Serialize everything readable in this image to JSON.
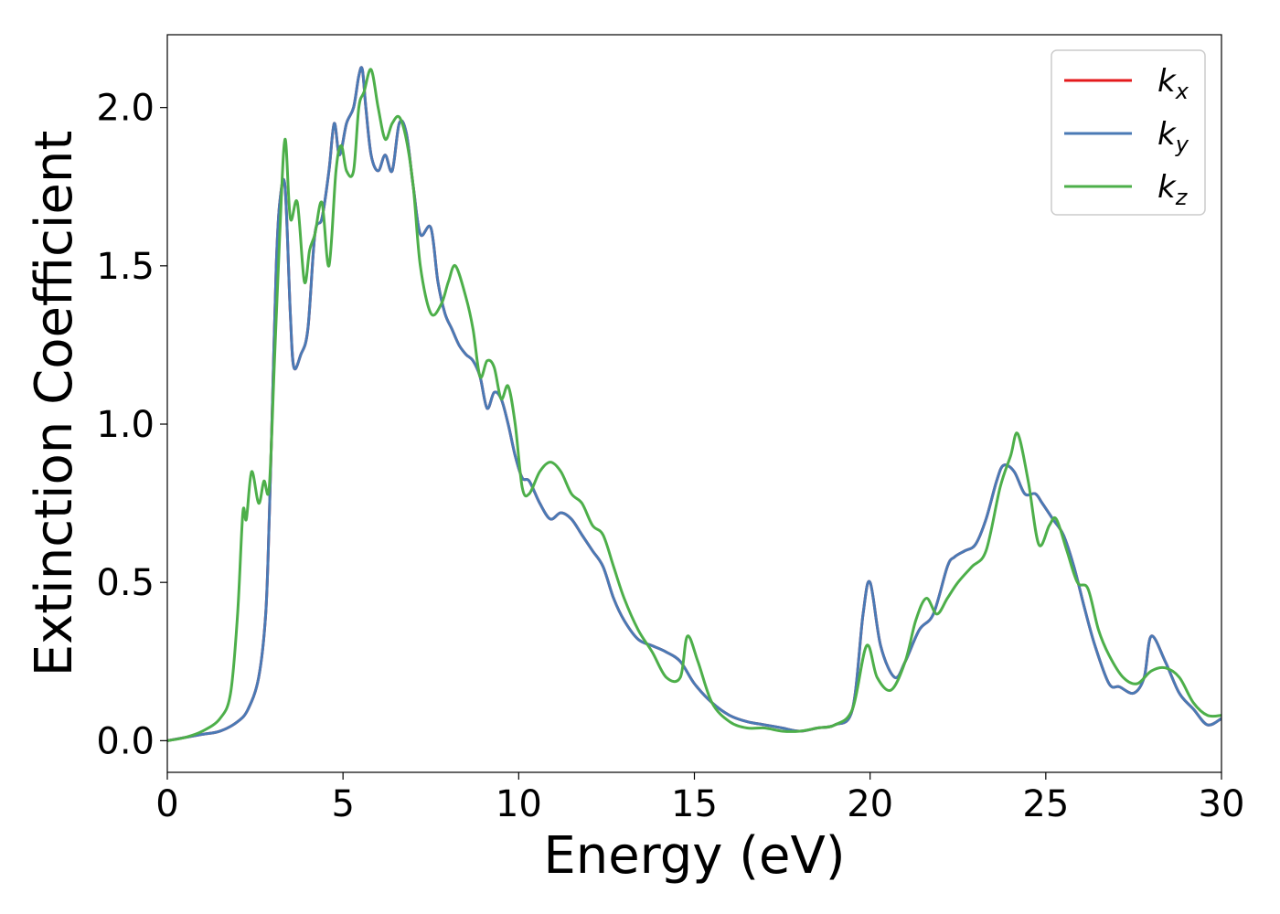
{
  "chart_data": {
    "type": "line",
    "xlabel": "Energy (eV)",
    "ylabel": "Extinction Coefficient",
    "xlim": [
      0,
      30
    ],
    "ylim": [
      -0.1,
      2.23
    ],
    "xticks": [
      "0",
      "5",
      "10",
      "15",
      "20",
      "25",
      "30"
    ],
    "yticks": [
      "0.0",
      "0.5",
      "1.0",
      "1.5",
      "2.0"
    ],
    "legend_position": "top-right",
    "grid": false,
    "series": [
      {
        "name": "k_x",
        "label_main": "k",
        "label_sub": "x",
        "color": "#e41a1c",
        "x": [
          0,
          0.5,
          1,
          1.5,
          2,
          2.3,
          2.6,
          2.8,
          2.9,
          3.0,
          3.1,
          3.2,
          3.35,
          3.5,
          3.6,
          3.8,
          4.0,
          4.2,
          4.4,
          4.6,
          4.75,
          4.9,
          5.1,
          5.3,
          5.45,
          5.55,
          5.65,
          5.8,
          6.0,
          6.2,
          6.4,
          6.6,
          6.8,
          7.0,
          7.2,
          7.5,
          7.7,
          7.9,
          8.1,
          8.3,
          8.5,
          8.7,
          8.9,
          9.1,
          9.3,
          9.5,
          9.7,
          9.9,
          10.1,
          10.3,
          10.6,
          10.9,
          11.2,
          11.5,
          11.8,
          12.1,
          12.4,
          12.7,
          13.0,
          13.4,
          13.8,
          14.2,
          14.6,
          15.0,
          15.5,
          16.0,
          16.5,
          17.0,
          17.5,
          18.0,
          18.5,
          19.0,
          19.5,
          19.8,
          20.0,
          20.3,
          20.7,
          21.0,
          21.4,
          21.8,
          22.2,
          22.4,
          22.7,
          23.0,
          23.3,
          23.6,
          23.8,
          24.1,
          24.4,
          24.7,
          24.9,
          25.2,
          25.5,
          25.8,
          26.1,
          26.4,
          26.8,
          27.1,
          27.5,
          27.8,
          28.0,
          28.4,
          28.8,
          29.2,
          29.6,
          30.0
        ],
        "values": [
          0,
          0.01,
          0.02,
          0.03,
          0.06,
          0.1,
          0.2,
          0.4,
          0.7,
          1.1,
          1.5,
          1.7,
          1.75,
          1.35,
          1.18,
          1.22,
          1.3,
          1.6,
          1.65,
          1.8,
          1.95,
          1.85,
          1.95,
          2.0,
          2.1,
          2.12,
          2.0,
          1.85,
          1.8,
          1.85,
          1.8,
          1.95,
          1.92,
          1.75,
          1.6,
          1.62,
          1.45,
          1.35,
          1.3,
          1.25,
          1.22,
          1.2,
          1.15,
          1.05,
          1.1,
          1.08,
          1.0,
          0.9,
          0.83,
          0.82,
          0.75,
          0.7,
          0.72,
          0.7,
          0.65,
          0.6,
          0.55,
          0.45,
          0.38,
          0.32,
          0.3,
          0.28,
          0.25,
          0.18,
          0.12,
          0.08,
          0.06,
          0.05,
          0.04,
          0.03,
          0.04,
          0.05,
          0.1,
          0.4,
          0.5,
          0.3,
          0.2,
          0.25,
          0.35,
          0.4,
          0.55,
          0.58,
          0.6,
          0.62,
          0.7,
          0.82,
          0.87,
          0.85,
          0.78,
          0.78,
          0.75,
          0.7,
          0.65,
          0.55,
          0.42,
          0.3,
          0.18,
          0.17,
          0.15,
          0.2,
          0.33,
          0.25,
          0.15,
          0.1,
          0.05,
          0.07
        ]
      },
      {
        "name": "k_y",
        "label_main": "k",
        "label_sub": "y",
        "color": "#4a7ab5",
        "x": [
          0,
          0.5,
          1,
          1.5,
          2,
          2.3,
          2.6,
          2.8,
          2.9,
          3.0,
          3.1,
          3.2,
          3.35,
          3.5,
          3.6,
          3.8,
          4.0,
          4.2,
          4.4,
          4.6,
          4.75,
          4.9,
          5.1,
          5.3,
          5.45,
          5.55,
          5.65,
          5.8,
          6.0,
          6.2,
          6.4,
          6.6,
          6.8,
          7.0,
          7.2,
          7.5,
          7.7,
          7.9,
          8.1,
          8.3,
          8.5,
          8.7,
          8.9,
          9.1,
          9.3,
          9.5,
          9.7,
          9.9,
          10.1,
          10.3,
          10.6,
          10.9,
          11.2,
          11.5,
          11.8,
          12.1,
          12.4,
          12.7,
          13.0,
          13.4,
          13.8,
          14.2,
          14.6,
          15.0,
          15.5,
          16.0,
          16.5,
          17.0,
          17.5,
          18.0,
          18.5,
          19.0,
          19.5,
          19.8,
          20.0,
          20.3,
          20.7,
          21.0,
          21.4,
          21.8,
          22.2,
          22.4,
          22.7,
          23.0,
          23.3,
          23.6,
          23.8,
          24.1,
          24.4,
          24.7,
          24.9,
          25.2,
          25.5,
          25.8,
          26.1,
          26.4,
          26.8,
          27.1,
          27.5,
          27.8,
          28.0,
          28.4,
          28.8,
          29.2,
          29.6,
          30.0
        ],
        "values": [
          0,
          0.01,
          0.02,
          0.03,
          0.06,
          0.1,
          0.2,
          0.4,
          0.7,
          1.1,
          1.5,
          1.7,
          1.75,
          1.35,
          1.18,
          1.22,
          1.3,
          1.6,
          1.65,
          1.8,
          1.95,
          1.85,
          1.95,
          2.0,
          2.1,
          2.12,
          2.0,
          1.85,
          1.8,
          1.85,
          1.8,
          1.95,
          1.92,
          1.75,
          1.6,
          1.62,
          1.45,
          1.35,
          1.3,
          1.25,
          1.22,
          1.2,
          1.15,
          1.05,
          1.1,
          1.08,
          1.0,
          0.9,
          0.83,
          0.82,
          0.75,
          0.7,
          0.72,
          0.7,
          0.65,
          0.6,
          0.55,
          0.45,
          0.38,
          0.32,
          0.3,
          0.28,
          0.25,
          0.18,
          0.12,
          0.08,
          0.06,
          0.05,
          0.04,
          0.03,
          0.04,
          0.05,
          0.1,
          0.4,
          0.5,
          0.3,
          0.2,
          0.25,
          0.35,
          0.4,
          0.55,
          0.58,
          0.6,
          0.62,
          0.7,
          0.82,
          0.87,
          0.85,
          0.78,
          0.78,
          0.75,
          0.7,
          0.65,
          0.55,
          0.42,
          0.3,
          0.18,
          0.17,
          0.15,
          0.2,
          0.33,
          0.25,
          0.15,
          0.1,
          0.05,
          0.07
        ]
      },
      {
        "name": "k_z",
        "label_main": "k",
        "label_sub": "z",
        "color": "#4daf4a",
        "x": [
          0,
          0.5,
          1,
          1.5,
          1.8,
          2.0,
          2.15,
          2.25,
          2.4,
          2.6,
          2.75,
          2.9,
          3.05,
          3.2,
          3.35,
          3.5,
          3.7,
          3.9,
          4.05,
          4.2,
          4.4,
          4.6,
          4.8,
          4.95,
          5.1,
          5.3,
          5.45,
          5.6,
          5.8,
          6.0,
          6.2,
          6.4,
          6.6,
          6.8,
          7.0,
          7.2,
          7.5,
          7.8,
          8.0,
          8.2,
          8.5,
          8.7,
          8.9,
          9.1,
          9.3,
          9.5,
          9.7,
          9.9,
          10.1,
          10.3,
          10.6,
          10.9,
          11.2,
          11.5,
          11.8,
          12.1,
          12.4,
          12.7,
          13.0,
          13.4,
          13.8,
          14.2,
          14.6,
          14.8,
          15.1,
          15.5,
          16.0,
          16.5,
          17.0,
          17.5,
          18.0,
          18.5,
          19.0,
          19.5,
          19.9,
          20.2,
          20.6,
          21.0,
          21.3,
          21.6,
          21.9,
          22.2,
          22.5,
          22.9,
          23.3,
          23.7,
          24.0,
          24.2,
          24.5,
          24.8,
          25.1,
          25.3,
          25.6,
          25.9,
          26.2,
          26.5,
          26.8,
          27.2,
          27.6,
          28.0,
          28.4,
          28.8,
          29.2,
          29.6,
          30.0
        ],
        "values": [
          0,
          0.01,
          0.03,
          0.07,
          0.15,
          0.4,
          0.72,
          0.7,
          0.85,
          0.75,
          0.82,
          0.8,
          1.2,
          1.6,
          1.9,
          1.65,
          1.7,
          1.45,
          1.55,
          1.6,
          1.7,
          1.5,
          1.8,
          1.88,
          1.8,
          1.8,
          2.0,
          2.05,
          2.12,
          2.0,
          1.9,
          1.95,
          1.97,
          1.9,
          1.75,
          1.5,
          1.35,
          1.38,
          1.45,
          1.5,
          1.4,
          1.3,
          1.15,
          1.2,
          1.18,
          1.08,
          1.12,
          1.0,
          0.8,
          0.78,
          0.85,
          0.88,
          0.85,
          0.78,
          0.75,
          0.68,
          0.65,
          0.55,
          0.45,
          0.35,
          0.28,
          0.2,
          0.2,
          0.33,
          0.25,
          0.12,
          0.06,
          0.04,
          0.04,
          0.03,
          0.03,
          0.04,
          0.05,
          0.1,
          0.3,
          0.2,
          0.16,
          0.25,
          0.38,
          0.45,
          0.4,
          0.45,
          0.5,
          0.55,
          0.6,
          0.8,
          0.9,
          0.97,
          0.82,
          0.62,
          0.68,
          0.7,
          0.6,
          0.5,
          0.48,
          0.35,
          0.27,
          0.2,
          0.18,
          0.22,
          0.23,
          0.2,
          0.12,
          0.08,
          0.08
        ]
      }
    ]
  }
}
